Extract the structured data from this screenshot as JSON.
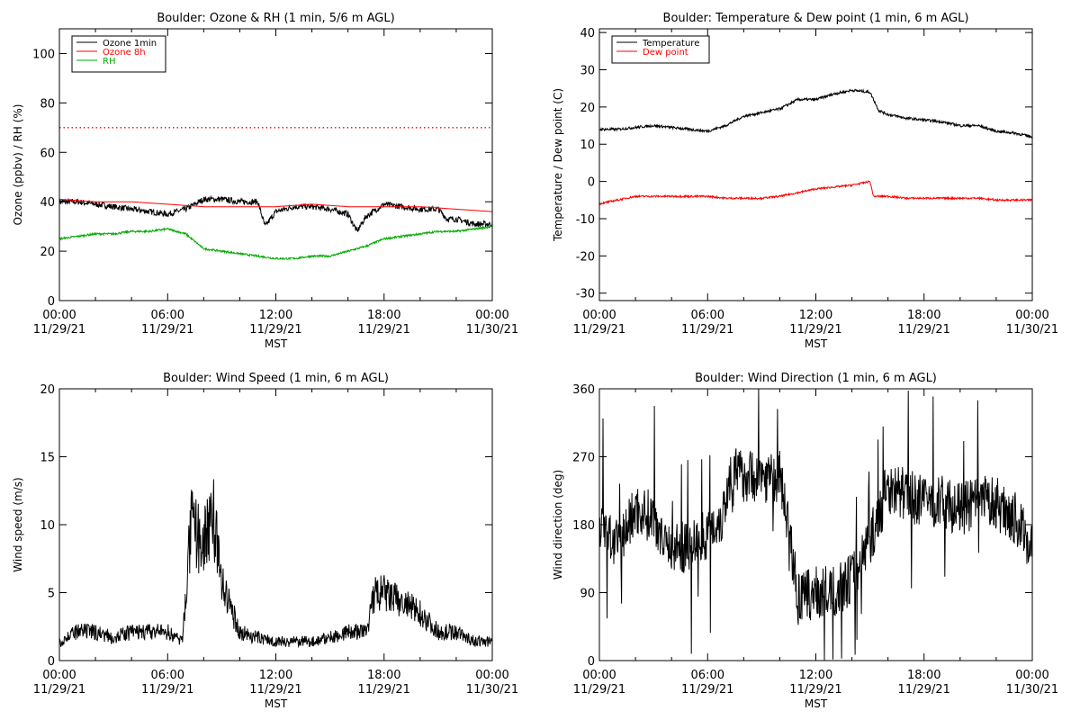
{
  "chart_data": [
    {
      "type": "line",
      "title": "Boulder: Ozone & RH (1 min, 5/6 m AGL)",
      "xlabel": "MST",
      "ylabel": "Ozone (ppbv) / RH (%)",
      "xlim": [
        "00:00 11/29/21",
        "00:00 11/30/21"
      ],
      "ylim": [
        0,
        110
      ],
      "x_ticks": [
        {
          "time": "00:00",
          "date": "11/29/21"
        },
        {
          "time": "06:00",
          "date": "11/29/21"
        },
        {
          "time": "12:00",
          "date": "11/29/21"
        },
        {
          "time": "18:00",
          "date": "11/29/21"
        },
        {
          "time": "00:00",
          "date": "11/30/21"
        }
      ],
      "y_ticks": [
        "0",
        "20",
        "40",
        "60",
        "80",
        "100"
      ],
      "legend": {
        "placement": "top-left",
        "entries": [
          "Ozone 1min",
          "Ozone 8h",
          "RH"
        ]
      },
      "reference_line": {
        "y": 70,
        "color": "#ff0000",
        "style": "dotted"
      },
      "series": [
        {
          "name": "Ozone 1min",
          "color": "#000000",
          "hours": [
            0,
            1,
            2,
            3,
            4,
            5,
            6,
            7,
            8,
            9,
            10,
            11,
            11.4,
            12,
            13,
            14,
            15,
            16,
            16.5,
            17,
            18,
            19,
            20,
            21,
            21.5,
            22,
            23,
            24
          ],
          "values": [
            40,
            40,
            39,
            38,
            37,
            36,
            35,
            37,
            41,
            41,
            40,
            40,
            30,
            36,
            38,
            38,
            37,
            35,
            28,
            34,
            39,
            38,
            37,
            37,
            33,
            33,
            31,
            31
          ]
        },
        {
          "name": "Ozone 8h",
          "color": "#ff0000",
          "hours": [
            0,
            2,
            4,
            6,
            8,
            10,
            12,
            14,
            16,
            18,
            20,
            22,
            24
          ],
          "values": [
            41,
            40,
            40,
            39,
            38,
            38,
            38,
            39,
            38,
            38,
            38,
            37,
            36
          ]
        },
        {
          "name": "RH",
          "color": "#00aa00",
          "hours": [
            0,
            1,
            2,
            3,
            4,
            5,
            6,
            7,
            8,
            9,
            10,
            11,
            12,
            13,
            14,
            15,
            16,
            17,
            18,
            19,
            20,
            21,
            22,
            23,
            24
          ],
          "values": [
            25,
            26,
            27,
            27,
            28,
            28,
            29,
            27,
            21,
            20,
            19,
            18,
            17,
            17,
            18,
            18,
            20,
            22,
            25,
            26,
            27,
            28,
            28,
            29,
            30
          ]
        }
      ]
    },
    {
      "type": "line",
      "title": "Boulder: Temperature & Dew point (1 min, 6 m AGL)",
      "xlabel": "MST",
      "ylabel": "Temperature / Dew point (C)",
      "xlim": [
        "00:00 11/29/21",
        "00:00 11/30/21"
      ],
      "ylim": [
        -32,
        41
      ],
      "x_ticks": [
        {
          "time": "00:00",
          "date": "11/29/21"
        },
        {
          "time": "06:00",
          "date": "11/29/21"
        },
        {
          "time": "12:00",
          "date": "11/29/21"
        },
        {
          "time": "18:00",
          "date": "11/29/21"
        },
        {
          "time": "00:00",
          "date": "11/30/21"
        }
      ],
      "y_ticks": [
        "-30",
        "-20",
        "-10",
        "0",
        "10",
        "20",
        "30",
        "40"
      ],
      "legend": {
        "placement": "top-left",
        "entries": [
          "Temperature",
          "Dew point"
        ]
      },
      "series": [
        {
          "name": "Temperature",
          "color": "#000000",
          "hours": [
            0,
            1,
            2,
            3,
            4,
            5,
            6,
            7,
            8,
            9,
            10,
            11,
            12,
            13,
            14,
            15,
            15.5,
            16,
            17,
            18,
            19,
            20,
            21,
            22,
            23,
            24
          ],
          "values": [
            14,
            14,
            14.5,
            15,
            14.5,
            14,
            13.5,
            15,
            17.5,
            18.5,
            19.5,
            22,
            22,
            23.5,
            24.5,
            24,
            19,
            18,
            17,
            16.5,
            16,
            15,
            15,
            13.5,
            13,
            12
          ]
        },
        {
          "name": "Dew point",
          "color": "#ff0000",
          "hours": [
            0,
            1,
            2,
            3,
            4,
            5,
            6,
            7,
            8,
            9,
            10,
            11,
            12,
            13,
            14,
            15,
            15.2,
            16,
            17,
            18,
            19,
            20,
            21,
            22,
            23,
            24
          ],
          "values": [
            -6,
            -5,
            -4,
            -4,
            -4,
            -4,
            -4,
            -4.5,
            -4.5,
            -4.5,
            -4,
            -3,
            -2,
            -1.5,
            -1,
            0,
            -4,
            -4,
            -4.5,
            -4.5,
            -4.5,
            -4.5,
            -4.5,
            -5,
            -5,
            -5
          ]
        }
      ]
    },
    {
      "type": "line",
      "title": "Boulder: Wind Speed (1 min, 6 m AGL)",
      "xlabel": "MST",
      "ylabel": "Wind speed (m/s)",
      "xlim": [
        "00:00 11/29/21",
        "00:00 11/30/21"
      ],
      "ylim": [
        0,
        20
      ],
      "x_ticks": [
        {
          "time": "00:00",
          "date": "11/29/21"
        },
        {
          "time": "06:00",
          "date": "11/29/21"
        },
        {
          "time": "12:00",
          "date": "11/29/21"
        },
        {
          "time": "18:00",
          "date": "11/29/21"
        },
        {
          "time": "00:00",
          "date": "11/30/21"
        }
      ],
      "y_ticks": [
        "0",
        "5",
        "10",
        "15",
        "20"
      ],
      "series": [
        {
          "color": "#000000",
          "hours": [
            0,
            1,
            2,
            3,
            4,
            5,
            6,
            6.8,
            7.3,
            8,
            8.5,
            9,
            10,
            11,
            12,
            13,
            14,
            15,
            16,
            17,
            17.5,
            18,
            19,
            20,
            21,
            22,
            23,
            24
          ],
          "values": [
            1,
            1.5,
            1.5,
            1.2,
            1.5,
            1.5,
            1.5,
            1,
            7,
            6,
            8,
            4,
            1.5,
            1.2,
            1,
            1,
            1,
            1.2,
            1.5,
            1.5,
            3.5,
            3.5,
            3,
            2.5,
            1.5,
            1.5,
            1,
            1
          ]
        }
      ]
    },
    {
      "type": "line",
      "title": "Boulder: Wind Direction (1 min, 6 m AGL)",
      "xlabel": "MST",
      "ylabel": "Wind direction (deg)",
      "xlim": [
        "00:00 11/29/21",
        "00:00 11/30/21"
      ],
      "ylim": [
        0,
        360
      ],
      "x_ticks": [
        {
          "time": "00:00",
          "date": "11/29/21"
        },
        {
          "time": "06:00",
          "date": "11/29/21"
        },
        {
          "time": "12:00",
          "date": "11/29/21"
        },
        {
          "time": "18:00",
          "date": "11/29/21"
        },
        {
          "time": "00:00",
          "date": "11/30/21"
        }
      ],
      "y_ticks": [
        "0",
        "90",
        "180",
        "270",
        "360"
      ],
      "series": [
        {
          "color": "#000000",
          "hours": [
            0,
            1,
            2,
            3,
            4,
            5,
            6,
            6.8,
            7.3,
            8,
            9,
            10,
            10.5,
            11,
            12,
            13,
            14,
            15,
            15.5,
            16,
            17,
            18,
            19,
            20,
            21,
            22,
            23,
            24
          ],
          "values": [
            180,
            150,
            200,
            190,
            150,
            150,
            170,
            190,
            250,
            245,
            245,
            240,
            180,
            80,
            90,
            90,
            110,
            160,
            190,
            230,
            220,
            210,
            210,
            200,
            210,
            210,
            190,
            150
          ]
        }
      ]
    }
  ]
}
